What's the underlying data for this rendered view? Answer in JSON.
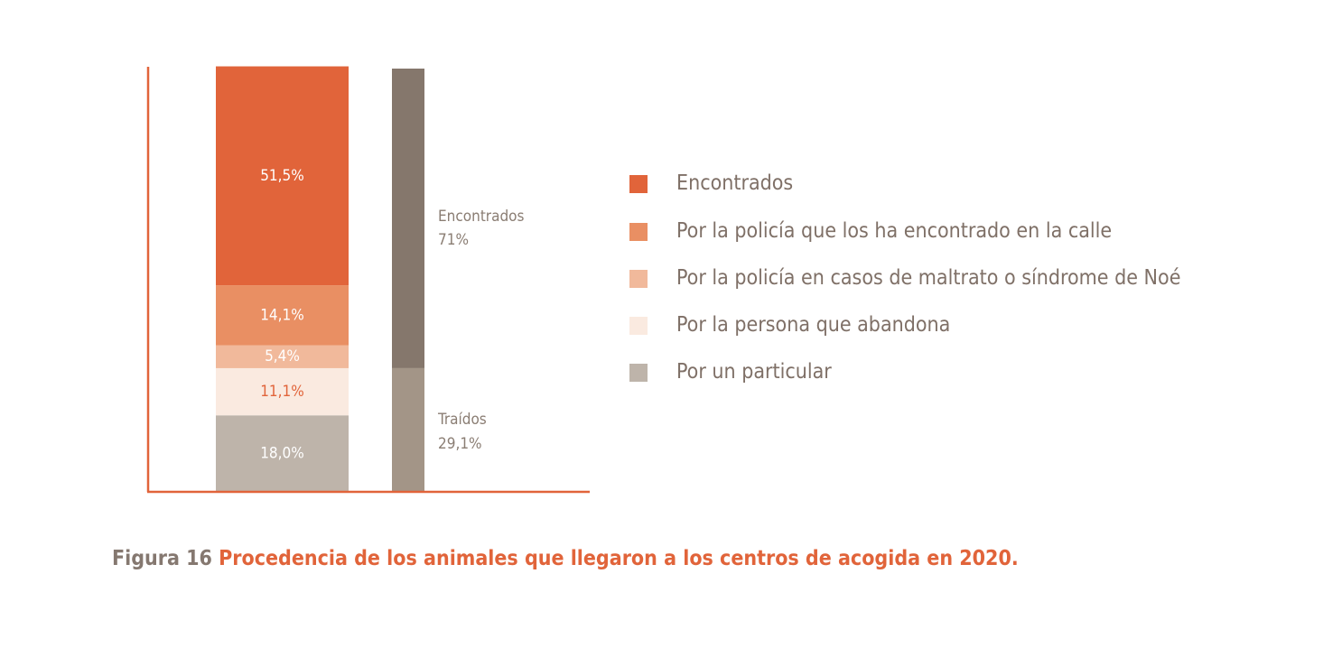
{
  "colors": {
    "axis": "#e1643a",
    "encontrados": "#e1643a",
    "policia_calle": "#e98f63",
    "policia_maltrato": "#f1b99b",
    "persona_abandona": "#faeae0",
    "particular": "#beb4aa",
    "total_encontrados": "#85776c",
    "total_traidos": "#a39587"
  },
  "chart_data": {
    "type": "bar",
    "stacked": true,
    "categories": [
      "",
      ""
    ],
    "ylim": [
      0,
      100
    ],
    "series": [
      {
        "name": "Encontrados",
        "values": [
          51.5,
          null
        ],
        "label": "51,5%",
        "label_color": "#ffffff",
        "color": "#e1643a"
      },
      {
        "name": "Por la policía que los ha encontrado en la calle",
        "values": [
          14.1,
          null
        ],
        "label": "14,1%",
        "label_color": "#ffffff",
        "color": "#e98f63"
      },
      {
        "name": "Por la policía en casos de maltrato o síndrome de Noé",
        "values": [
          5.4,
          null
        ],
        "label": "5,4%",
        "label_color": "#ffffff",
        "color": "#f1b99b"
      },
      {
        "name": "Por la persona que abandona",
        "values": [
          11.1,
          null
        ],
        "label": "11,1%",
        "label_color": "#e1643a",
        "color": "#faeae0"
      },
      {
        "name": "Por un particular",
        "values": [
          18.0,
          null
        ],
        "label": "18,0%",
        "label_color": "#ffffff",
        "color": "#beb4aa"
      }
    ],
    "totals": [
      {
        "name": "Encontrados",
        "value": 71,
        "label": "71%",
        "color": "#85776c"
      },
      {
        "name": "Traídos",
        "value": 29.1,
        "label": "29,1%",
        "color": "#a39587"
      }
    ],
    "legend_position": "right",
    "grid": false
  },
  "caption": {
    "number": "Figura 16",
    "title": "Procedencia de los animales que llegaron a los centros de acogida en 2020."
  }
}
